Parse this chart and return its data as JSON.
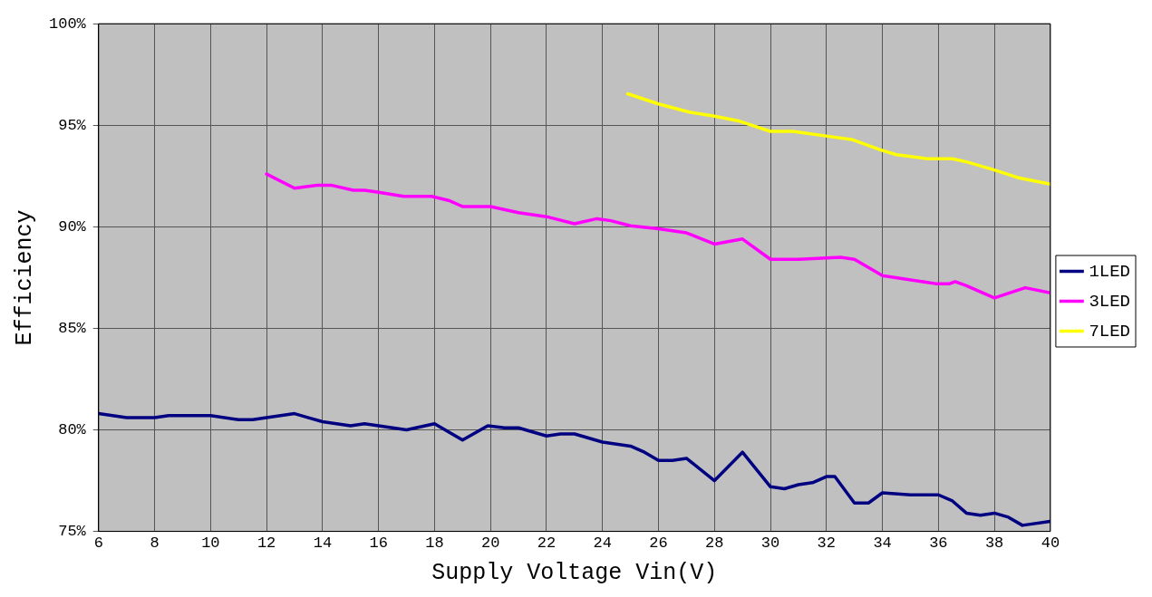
{
  "chart_data": {
    "type": "line",
    "xlabel": "Supply Voltage Vin(V)",
    "ylabel": "Efficiency",
    "xlim": [
      6,
      40
    ],
    "xticks": [
      6,
      8,
      10,
      12,
      14,
      16,
      18,
      20,
      22,
      24,
      26,
      28,
      30,
      32,
      34,
      36,
      38,
      40
    ],
    "ylim": [
      75,
      100
    ],
    "yticks": [
      {
        "value": 75,
        "label": "75%"
      },
      {
        "value": 80,
        "label": "80%"
      },
      {
        "value": 85,
        "label": "85%"
      },
      {
        "value": 90,
        "label": "90%"
      },
      {
        "value": 95,
        "label": "95%"
      },
      {
        "value": 100,
        "label": "100%"
      }
    ],
    "grid": true,
    "legend": "right",
    "marker": "none",
    "line_style": "solid",
    "series": [
      {
        "name": "1LED",
        "color": "#000080",
        "x": [
          6,
          7,
          8,
          8.5,
          10,
          11,
          11.5,
          12.5,
          13,
          13.5,
          14,
          15,
          15.5,
          16,
          17,
          18,
          19,
          19.9,
          20.5,
          21,
          22,
          22.5,
          23,
          24,
          25,
          25.5,
          26,
          26.5,
          27,
          28,
          29,
          30,
          30.5,
          31,
          31.5,
          32,
          32.3,
          33,
          33.5,
          34,
          35,
          36,
          36.5,
          37,
          37.5,
          38,
          38.5,
          39,
          40
        ],
        "values": [
          80.8,
          80.6,
          80.6,
          80.7,
          80.7,
          80.5,
          80.5,
          80.7,
          80.8,
          80.6,
          80.4,
          80.2,
          80.3,
          80.2,
          80.0,
          80.3,
          79.5,
          80.2,
          80.1,
          80.1,
          79.7,
          79.8,
          79.8,
          79.4,
          79.2,
          78.9,
          78.5,
          78.5,
          78.6,
          77.5,
          78.9,
          77.2,
          77.1,
          77.3,
          77.4,
          77.7,
          77.7,
          76.4,
          76.4,
          76.9,
          76.8,
          76.8,
          76.5,
          75.9,
          75.8,
          75.9,
          75.7,
          75.3,
          75.5
        ]
      },
      {
        "name": "3LED",
        "color": "#ff00ff",
        "x": [
          12,
          13,
          13.8,
          14.3,
          15.1,
          15.5,
          16,
          16.9,
          17.9,
          18.5,
          19,
          20,
          21,
          22,
          23,
          23.8,
          24.3,
          25,
          26,
          27,
          28,
          29,
          30,
          31,
          32.5,
          33,
          34,
          35.9,
          36.4,
          36.6,
          37,
          38,
          39.1,
          40
        ],
        "values": [
          92.6,
          91.9,
          92.05,
          92.05,
          91.8,
          91.8,
          91.7,
          91.5,
          91.5,
          91.3,
          91.0,
          91.0,
          90.7,
          90.5,
          90.15,
          90.4,
          90.3,
          90.05,
          89.9,
          89.7,
          89.15,
          89.4,
          88.4,
          88.4,
          88.5,
          88.4,
          87.6,
          87.2,
          87.2,
          87.3,
          87.1,
          86.5,
          87.0,
          86.75
        ]
      },
      {
        "name": "7LED",
        "color": "#ffff00",
        "x": [
          24.9,
          26,
          27.1,
          28,
          28.9,
          30,
          30.8,
          32.1,
          32.9,
          33.9,
          34.5,
          35.6,
          36.5,
          37,
          38,
          38.9,
          40
        ],
        "values": [
          96.55,
          96.05,
          95.65,
          95.45,
          95.2,
          94.7,
          94.7,
          94.45,
          94.3,
          93.8,
          93.55,
          93.35,
          93.35,
          93.2,
          92.8,
          92.4,
          92.1
        ]
      }
    ]
  }
}
